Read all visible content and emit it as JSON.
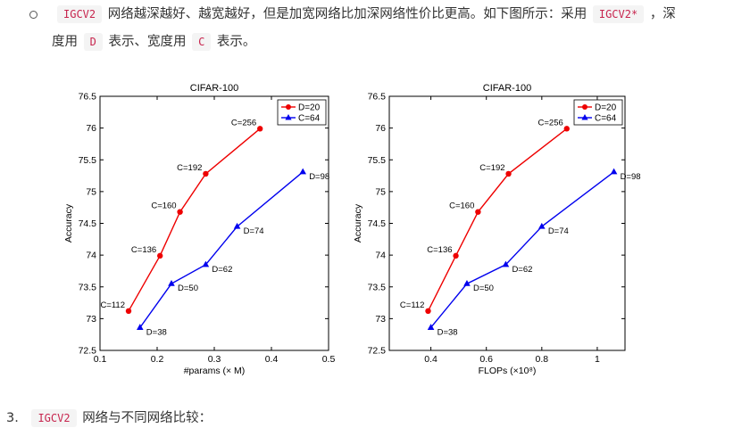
{
  "paragraph": {
    "line1": {
      "code1": "IGCV2",
      "text1": "网络越深越好、越宽越好，但是加宽网络比加深网络性价比更高。如下图所示：采用",
      "code2": "IGCV2*",
      "text2": "，深"
    },
    "line2": {
      "text1": "度用",
      "code1": "D",
      "text2": "表示、宽度用",
      "code2": "C",
      "text3": "表示。"
    }
  },
  "numbered_item": {
    "number": "3.",
    "code": "IGCV2",
    "text": "网络与不同网络比较："
  },
  "chart_data": [
    {
      "type": "line",
      "title": "CIFAR-100",
      "xlabel": "#params (× M)",
      "ylabel": "Accuracy",
      "xlim": [
        0.1,
        0.5
      ],
      "ylim": [
        72.5,
        76.5
      ],
      "xticks": [
        "0.1",
        "0.2",
        "0.3",
        "0.4",
        "0.5"
      ],
      "yticks": [
        "72.5",
        "73",
        "73.5",
        "74",
        "74.5",
        "75",
        "75.5",
        "76",
        "76.5"
      ],
      "legend_position": "top-right",
      "grid": false,
      "series": [
        {
          "name": "D=20",
          "color": "#ee0000",
          "marker": "circle",
          "points": [
            {
              "x": 0.15,
              "y": 73.12,
              "label": "C=112"
            },
            {
              "x": 0.205,
              "y": 73.99,
              "label": "C=136"
            },
            {
              "x": 0.24,
              "y": 74.68,
              "label": "C=160"
            },
            {
              "x": 0.285,
              "y": 75.28,
              "label": "C=192"
            },
            {
              "x": 0.38,
              "y": 75.99,
              "label": "C=256"
            }
          ]
        },
        {
          "name": "C=64",
          "color": "#0000ee",
          "marker": "triangle",
          "points": [
            {
              "x": 0.17,
              "y": 72.86,
              "label": "D=38"
            },
            {
              "x": 0.225,
              "y": 73.55,
              "label": "D=50"
            },
            {
              "x": 0.285,
              "y": 73.85,
              "label": "D=62"
            },
            {
              "x": 0.34,
              "y": 74.45,
              "label": "D=74"
            },
            {
              "x": 0.455,
              "y": 75.31,
              "label": "D=98"
            }
          ]
        }
      ]
    },
    {
      "type": "line",
      "title": "CIFAR-100",
      "xlabel": "FLOPs (×10⁸)",
      "ylabel": "Accuracy",
      "xlim": [
        0.25,
        1.1
      ],
      "ylim": [
        72.5,
        76.5
      ],
      "xticks": [
        "0.4",
        "0.6",
        "0.8",
        "1"
      ],
      "xtick_values": [
        0.4,
        0.6,
        0.8,
        1.0
      ],
      "yticks": [
        "72.5",
        "73",
        "73.5",
        "74",
        "74.5",
        "75",
        "75.5",
        "76",
        "76.5"
      ],
      "legend_position": "top-right",
      "grid": false,
      "series": [
        {
          "name": "D=20",
          "color": "#ee0000",
          "marker": "circle",
          "points": [
            {
              "x": 0.39,
              "y": 73.12,
              "label": "C=112"
            },
            {
              "x": 0.49,
              "y": 73.99,
              "label": "C=136"
            },
            {
              "x": 0.57,
              "y": 74.68,
              "label": "C=160"
            },
            {
              "x": 0.68,
              "y": 75.28,
              "label": "C=192"
            },
            {
              "x": 0.89,
              "y": 75.99,
              "label": "C=256"
            }
          ]
        },
        {
          "name": "C=64",
          "color": "#0000ee",
          "marker": "triangle",
          "points": [
            {
              "x": 0.4,
              "y": 72.86,
              "label": "D=38"
            },
            {
              "x": 0.53,
              "y": 73.55,
              "label": "D=50"
            },
            {
              "x": 0.67,
              "y": 73.85,
              "label": "D=62"
            },
            {
              "x": 0.8,
              "y": 74.45,
              "label": "D=74"
            },
            {
              "x": 1.06,
              "y": 75.31,
              "label": "D=98"
            }
          ]
        }
      ]
    }
  ]
}
